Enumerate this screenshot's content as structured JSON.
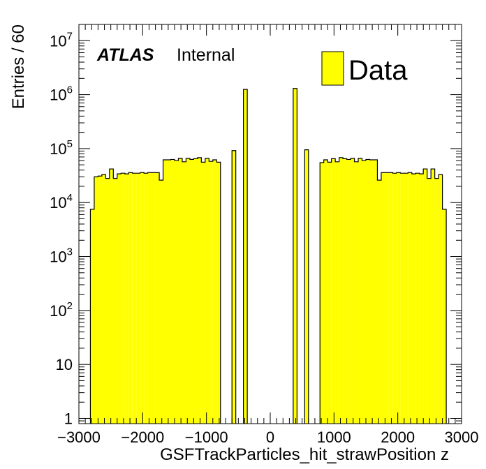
{
  "chart_data": {
    "type": "bar",
    "title": "",
    "xlabel": "GSFTrackParticles_hit_strawPosition z",
    "ylabel": "Entries / 60",
    "xlim": [
      -3000,
      3000
    ],
    "ylim": [
      0.8,
      20000000
    ],
    "yscale": "log",
    "bin_width": 60,
    "grid": false,
    "legend_position": "top-right",
    "x_ticks": [
      -3000,
      -2000,
      -1000,
      0,
      1000,
      2000,
      3000
    ],
    "x_tick_labels": [
      "−3000",
      "−2000",
      "−1000",
      "0",
      "1000",
      "2000",
      "3000"
    ],
    "y_ticks": [
      1,
      10,
      100,
      1000,
      10000,
      100000,
      1000000,
      10000000
    ],
    "y_tick_labels": [
      {
        "base": "1",
        "exp": ""
      },
      {
        "base": "10",
        "exp": ""
      },
      {
        "base": "10",
        "exp": "2"
      },
      {
        "base": "10",
        "exp": "3"
      },
      {
        "base": "10",
        "exp": "4"
      },
      {
        "base": "10",
        "exp": "5"
      },
      {
        "base": "10",
        "exp": "6"
      },
      {
        "base": "10",
        "exp": "7"
      }
    ],
    "annotation": {
      "experiment": "ATLAS",
      "status": "Internal"
    },
    "series": [
      {
        "name": "Data",
        "fill_color": "#ffff00",
        "edge_color": "#000000",
        "bins": [
          [
            -2820,
            7500
          ],
          [
            -2760,
            30000
          ],
          [
            -2700,
            31000
          ],
          [
            -2640,
            33000
          ],
          [
            -2580,
            28000
          ],
          [
            -2520,
            42000
          ],
          [
            -2460,
            28000
          ],
          [
            -2400,
            34000
          ],
          [
            -2340,
            35000
          ],
          [
            -2280,
            34000
          ],
          [
            -2220,
            36000
          ],
          [
            -2160,
            35000
          ],
          [
            -2100,
            35000
          ],
          [
            -2040,
            36000
          ],
          [
            -1980,
            35000
          ],
          [
            -1920,
            36000
          ],
          [
            -1860,
            36000
          ],
          [
            -1800,
            36000
          ],
          [
            -1740,
            26000
          ],
          [
            -1680,
            62000
          ],
          [
            -1620,
            62000
          ],
          [
            -1560,
            63000
          ],
          [
            -1500,
            60000
          ],
          [
            -1440,
            66000
          ],
          [
            -1380,
            57000
          ],
          [
            -1320,
            66000
          ],
          [
            -1260,
            63000
          ],
          [
            -1200,
            65000
          ],
          [
            -1140,
            68000
          ],
          [
            -1080,
            56000
          ],
          [
            -1020,
            66000
          ],
          [
            -960,
            58000
          ],
          [
            -900,
            62000
          ],
          [
            -840,
            56000
          ],
          [
            -600,
            92000
          ],
          [
            -420,
            1250000
          ],
          [
            360,
            1300000
          ],
          [
            540,
            95000
          ],
          [
            780,
            55000
          ],
          [
            840,
            62000
          ],
          [
            900,
            56000
          ],
          [
            960,
            65000
          ],
          [
            1020,
            57000
          ],
          [
            1080,
            68000
          ],
          [
            1140,
            65000
          ],
          [
            1200,
            63000
          ],
          [
            1260,
            66000
          ],
          [
            1320,
            57000
          ],
          [
            1380,
            66000
          ],
          [
            1440,
            60000
          ],
          [
            1500,
            63000
          ],
          [
            1560,
            62000
          ],
          [
            1620,
            62000
          ],
          [
            1680,
            26000
          ],
          [
            1740,
            36000
          ],
          [
            1800,
            36000
          ],
          [
            1860,
            36000
          ],
          [
            1920,
            35000
          ],
          [
            1980,
            36000
          ],
          [
            2040,
            35000
          ],
          [
            2100,
            35000
          ],
          [
            2160,
            36000
          ],
          [
            2220,
            34000
          ],
          [
            2280,
            35000
          ],
          [
            2340,
            34000
          ],
          [
            2400,
            42000
          ],
          [
            2460,
            28000
          ],
          [
            2520,
            42000
          ],
          [
            2580,
            28000
          ],
          [
            2640,
            33000
          ],
          [
            2700,
            7500
          ]
        ]
      }
    ]
  }
}
